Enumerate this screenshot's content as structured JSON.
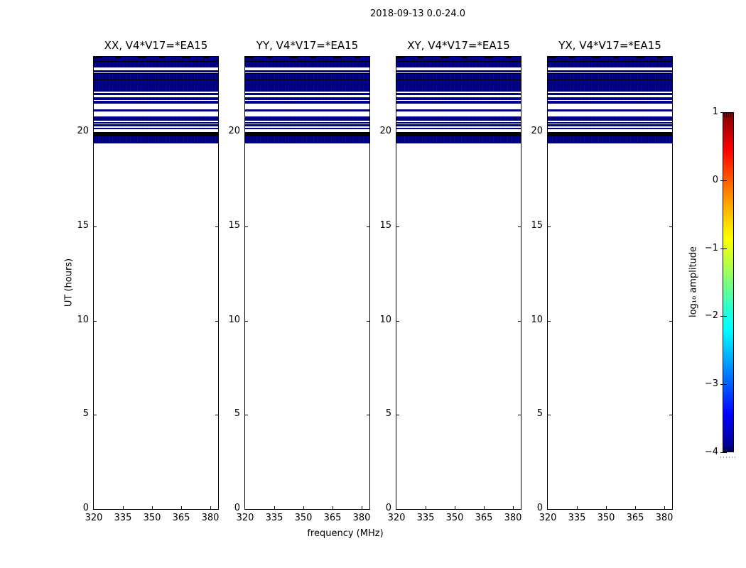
{
  "chart_data": {
    "type": "heatmap",
    "title": "2018-09-13 0.0-24.0",
    "xlabel": "frequency (MHz)",
    "ylabel": "UT (hours)",
    "x_range_mhz": [
      320,
      384
    ],
    "y_range_hours": [
      0,
      24
    ],
    "x_ticks": [
      "320",
      "335",
      "350",
      "365",
      "380"
    ],
    "y_ticks": [
      "0",
      "5",
      "10",
      "15",
      "20"
    ],
    "panels": [
      {
        "label": "XX, V4*V17=*EA15"
      },
      {
        "label": "YY, V4*V17=*EA15"
      },
      {
        "label": "XY, V4*V17=*EA15"
      },
      {
        "label": "YX, V4*V17=*EA15"
      }
    ],
    "stripes_ut": [
      {
        "from": 24.0,
        "to": 23.92,
        "color": "mottled"
      },
      {
        "from": 23.92,
        "to": 23.79,
        "color": "navy"
      },
      {
        "from": 23.79,
        "to": 23.75,
        "color": "black"
      },
      {
        "from": 23.75,
        "to": 23.45,
        "color": "navy"
      },
      {
        "from": 23.45,
        "to": 23.38,
        "color": "white"
      },
      {
        "from": 23.38,
        "to": 23.35,
        "color": "navy"
      },
      {
        "from": 23.35,
        "to": 23.29,
        "color": "white"
      },
      {
        "from": 23.29,
        "to": 23.15,
        "color": "navy"
      },
      {
        "from": 23.15,
        "to": 23.11,
        "color": "black"
      },
      {
        "from": 23.11,
        "to": 22.79,
        "color": "navy"
      },
      {
        "from": 22.79,
        "to": 22.75,
        "color": "black"
      },
      {
        "from": 22.75,
        "to": 22.17,
        "color": "navy"
      },
      {
        "from": 22.17,
        "to": 22.07,
        "color": "white"
      },
      {
        "from": 22.07,
        "to": 21.96,
        "color": "navy"
      },
      {
        "from": 21.96,
        "to": 21.87,
        "color": "white"
      },
      {
        "from": 21.87,
        "to": 21.72,
        "color": "navy"
      },
      {
        "from": 21.72,
        "to": 21.65,
        "color": "white"
      },
      {
        "from": 21.65,
        "to": 21.5,
        "color": "navy"
      },
      {
        "from": 21.5,
        "to": 21.21,
        "color": "white"
      },
      {
        "from": 21.21,
        "to": 21.1,
        "color": "navy"
      },
      {
        "from": 21.1,
        "to": 20.84,
        "color": "white"
      },
      {
        "from": 20.84,
        "to": 20.6,
        "color": "navy"
      },
      {
        "from": 20.6,
        "to": 20.55,
        "color": "white"
      },
      {
        "from": 20.55,
        "to": 20.45,
        "color": "navy"
      },
      {
        "from": 20.45,
        "to": 20.41,
        "color": "white"
      },
      {
        "from": 20.41,
        "to": 20.3,
        "color": "navy"
      },
      {
        "from": 20.3,
        "to": 20.25,
        "color": "white"
      },
      {
        "from": 20.25,
        "to": 20.15,
        "color": "navy"
      },
      {
        "from": 20.15,
        "to": 20.0,
        "color": "white"
      },
      {
        "from": 20.0,
        "to": 19.77,
        "color": "black"
      },
      {
        "from": 19.77,
        "to": 19.4,
        "color": "navy"
      }
    ],
    "background_color": "#ffffff",
    "stripe_colors": {
      "navy": "#00008b",
      "black": "#000000",
      "white": "#ffffff"
    },
    "colorbar": {
      "label": "log₁₀ amplitude",
      "range": [
        -4,
        1
      ],
      "tick_values": [
        1,
        0,
        -1,
        -2,
        -3,
        -4
      ],
      "tick_labels": [
        "1",
        "0",
        "−1",
        "−2",
        "−3",
        "−4"
      ],
      "colormap": "jet",
      "gradient": [
        {
          "pos": 0,
          "color": "#7f0000"
        },
        {
          "pos": 11,
          "color": "#ff0000"
        },
        {
          "pos": 22,
          "color": "#ff7300"
        },
        {
          "pos": 30,
          "color": "#ffc400"
        },
        {
          "pos": 37,
          "color": "#ffff00"
        },
        {
          "pos": 45,
          "color": "#b4ff4b"
        },
        {
          "pos": 50,
          "color": "#7dff7a"
        },
        {
          "pos": 58,
          "color": "#2affd5"
        },
        {
          "pos": 64,
          "color": "#00ffff"
        },
        {
          "pos": 72,
          "color": "#00b0ff"
        },
        {
          "pos": 80,
          "color": "#0060ff"
        },
        {
          "pos": 89,
          "color": "#0000ff"
        },
        {
          "pos": 100,
          "color": "#000080"
        }
      ]
    }
  }
}
